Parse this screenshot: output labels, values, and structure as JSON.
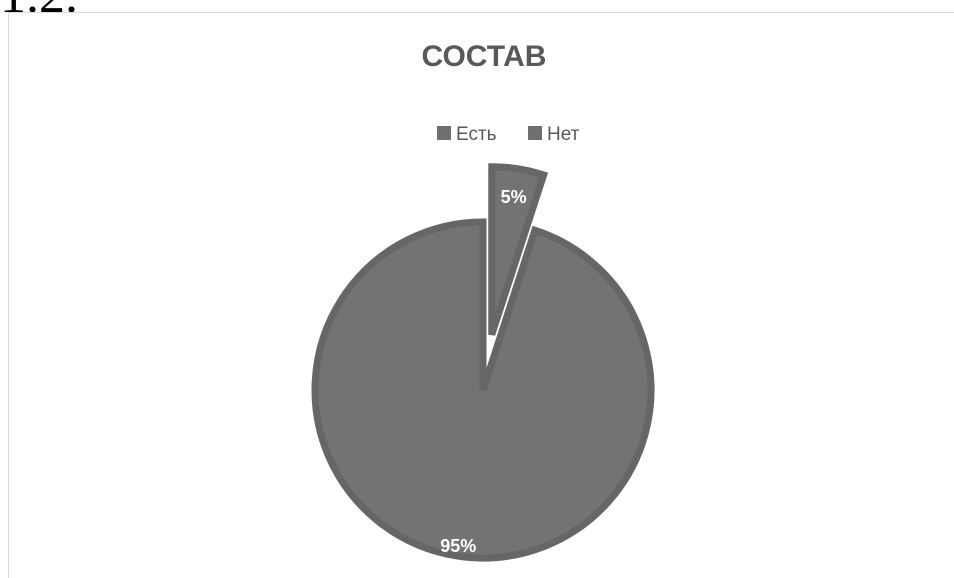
{
  "heading_fragment": "1.2.",
  "chart_data": {
    "type": "pie",
    "title": "СОСТАВ",
    "legend_position": "top",
    "categories": [
      "Есть",
      "Нет"
    ],
    "values": [
      5,
      95
    ],
    "data_labels": [
      "5%",
      "95%"
    ],
    "exploded": true,
    "colors": {
      "slice_fill": "#737373",
      "slice_border": "#666666",
      "legend_swatch": "#6f6f6f",
      "title": "#595959",
      "label": "#ffffff"
    }
  }
}
